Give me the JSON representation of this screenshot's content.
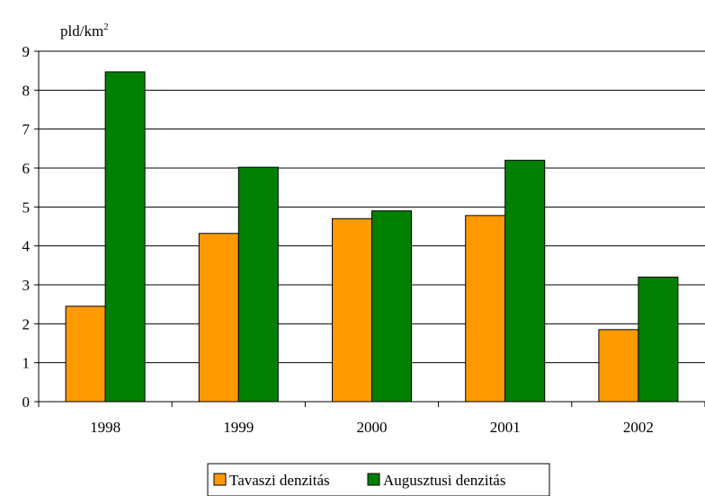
{
  "chart_data": {
    "type": "bar",
    "title": "",
    "xlabel": "",
    "ylabel": "pld/km",
    "ylabel_superscript": "2",
    "categories": [
      "1998",
      "1999",
      "2000",
      "2001",
      "2002"
    ],
    "ylim": [
      0,
      9
    ],
    "yticks": [
      "0",
      "1",
      "2",
      "3",
      "4",
      "5",
      "6",
      "7",
      "8",
      "9"
    ],
    "grid": true,
    "legend_position": "bottom",
    "series": [
      {
        "name": "Tavaszi denzitás",
        "color": "#FF9900",
        "values": [
          2.45,
          4.32,
          4.7,
          4.78,
          1.85
        ]
      },
      {
        "name": "Augusztusi denzitás",
        "color": "#008000",
        "values": [
          8.47,
          6.02,
          4.9,
          6.2,
          3.2
        ]
      }
    ]
  }
}
